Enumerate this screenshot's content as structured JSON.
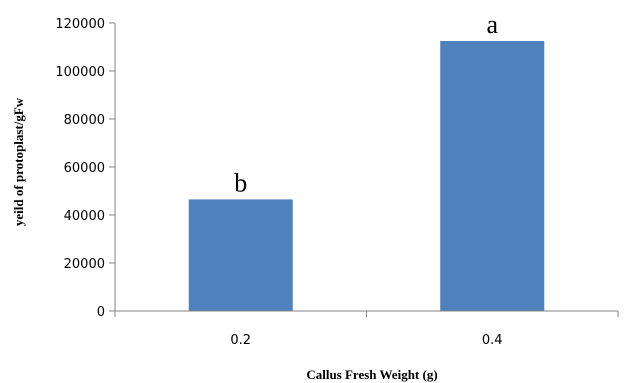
{
  "chart_data": {
    "type": "bar",
    "categories": [
      "0.2",
      "0.4"
    ],
    "values": [
      46500,
      112500
    ],
    "annotations": [
      "b",
      "a"
    ],
    "xlabel": "Callus Fresh Weight (g)",
    "ylabel": "yeild of protoplast/gFw",
    "ylim": [
      0,
      120000
    ],
    "yticks": [
      0,
      20000,
      40000,
      60000,
      80000,
      100000,
      120000
    ],
    "grid": false,
    "legend": "none",
    "bar_color": "#4F81BD",
    "axis_color": "#868686"
  }
}
